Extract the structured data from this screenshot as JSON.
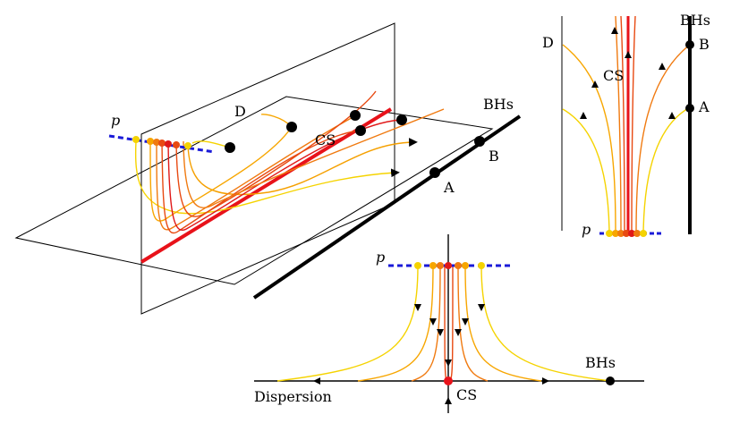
{
  "labels": {
    "main": {
      "p": "p",
      "d": "D",
      "cs": "CS",
      "bhs": "BHs",
      "b": "B",
      "a": "A"
    },
    "inset_top": {
      "d": "D",
      "cs": "CS",
      "bhs": "BHs",
      "b": "B",
      "a": "A",
      "p": "p"
    },
    "inset_bottom": {
      "p": "p",
      "bhs": "BHs",
      "dispersion": "Dispersion",
      "cs": "CS"
    }
  },
  "colors": {
    "cs_line": "#e8121a",
    "bhs_line": "#000000",
    "p_line": "#1a1ad8",
    "yellow": "#f5d300",
    "orange_light": "#f7a600",
    "orange": "#f07a10",
    "red_orange": "#e84a12",
    "red": "#e01818"
  }
}
